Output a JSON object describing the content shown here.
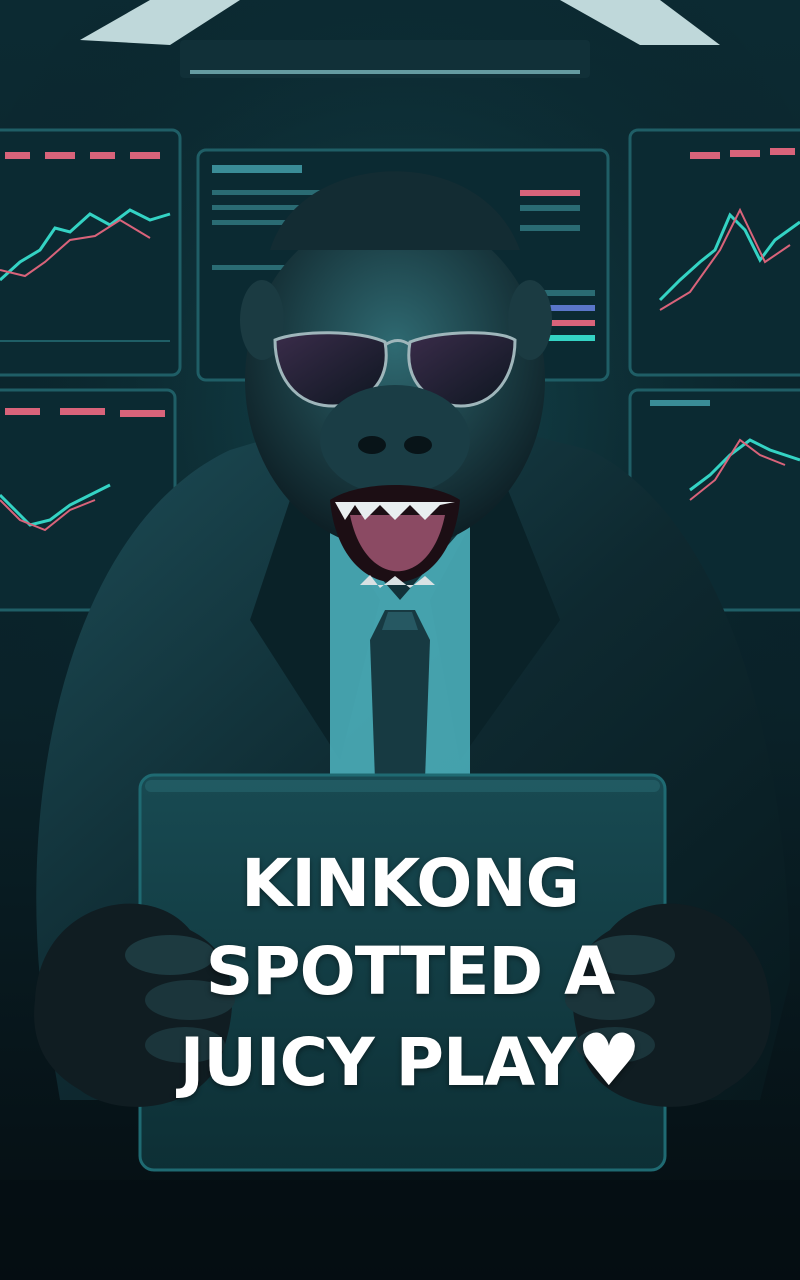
{
  "poster": {
    "caption_lines": [
      "KINKONG",
      "SPOTTED A",
      "JUICY PLAY"
    ],
    "caption_heart": "♥"
  },
  "palette": {
    "background": "#07161c",
    "teal": "#1f7f8a",
    "screen": "#0b2a32",
    "candle_up": "#34d3c4",
    "candle_down": "#d9637a",
    "suit": "#0f2b33",
    "fur": "#13232a",
    "shirt": "#4fb6c2",
    "tablet": "#123c43",
    "text": "#ffffff"
  },
  "icons": {
    "heart": "heart-icon"
  }
}
